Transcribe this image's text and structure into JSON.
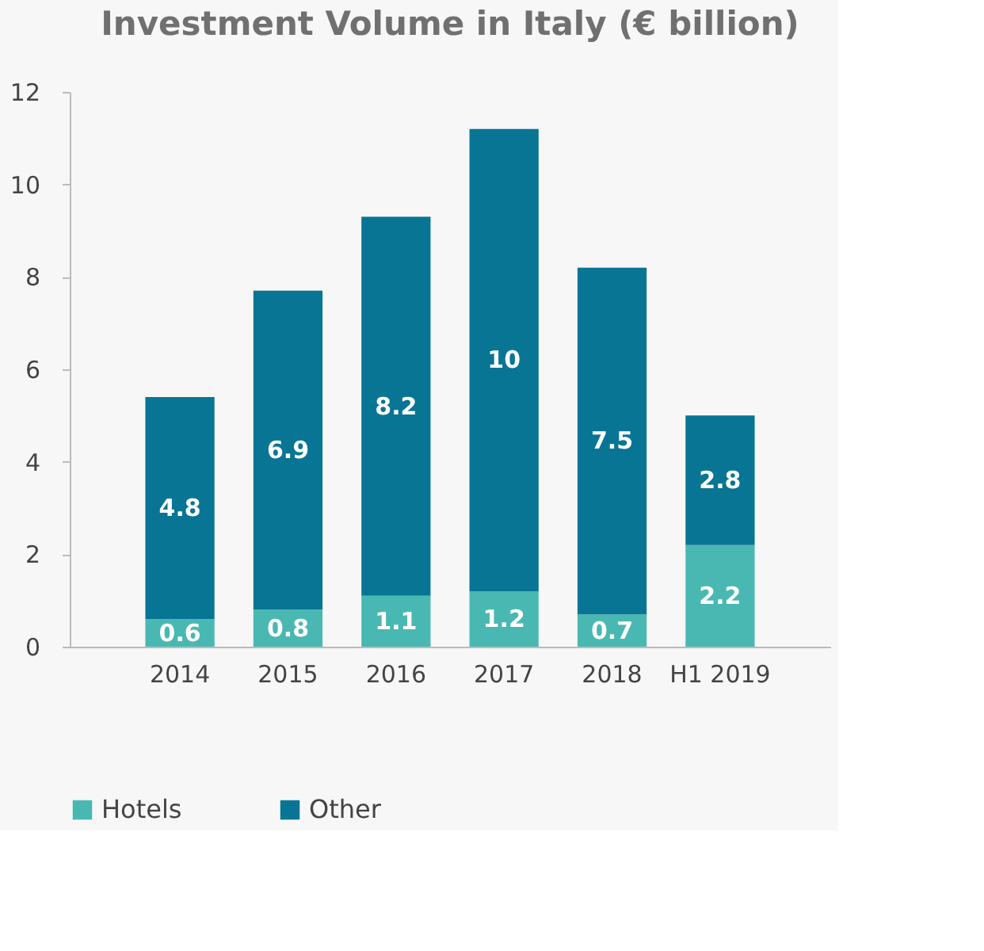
{
  "chart_data": {
    "type": "bar",
    "title": "Investment Volume in Italy (€ billion)",
    "stacked": true,
    "categories": [
      "2014",
      "2015",
      "2016",
      "2017",
      "2018",
      "H1 2019"
    ],
    "series": [
      {
        "name": "Hotels",
        "color": "#4ab8b2",
        "values": [
          0.6,
          0.8,
          1.1,
          1.2,
          0.7,
          2.2
        ]
      },
      {
        "name": "Other",
        "color": "#087595",
        "values": [
          4.8,
          6.9,
          8.2,
          10,
          7.5,
          2.8
        ]
      }
    ],
    "ylim": [
      0,
      12
    ],
    "yticks": [
      0,
      2,
      4,
      6,
      8,
      10,
      12
    ],
    "grid": false,
    "legend": "bottom",
    "data_labels": true
  }
}
